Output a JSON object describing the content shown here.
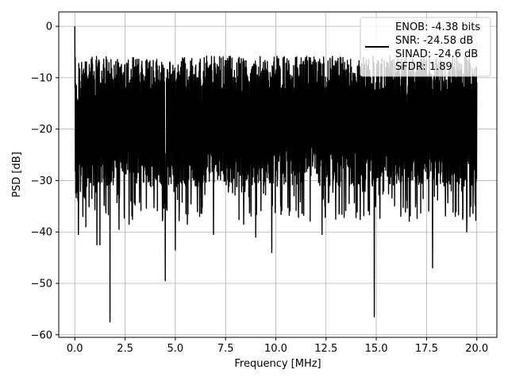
{
  "chart_data": {
    "type": "line",
    "xlabel": "Frequency [MHz]",
    "ylabel": "PSD [dB]",
    "xlim": [
      -0.8,
      21.0
    ],
    "ylim": [
      -60.5,
      2.8
    ],
    "xticks": [
      0.0,
      2.5,
      5.0,
      7.5,
      10.0,
      12.5,
      15.0,
      17.5,
      20.0
    ],
    "xtick_labels": [
      "0.0",
      "2.5",
      "5.0",
      "7.5",
      "10.0",
      "12.5",
      "15.0",
      "17.5",
      "20.0"
    ],
    "yticks": [
      0,
      -10,
      -20,
      -30,
      -40,
      -50,
      -60
    ],
    "ytick_labels": [
      "0",
      "−10",
      "−20",
      "−30",
      "−40",
      "−50",
      "−60"
    ],
    "grid": true,
    "legend_position": "top-right",
    "series": [
      {
        "color": "#000000",
        "legend_lines": [
          "ENOB: -4.38 bits",
          "SNR: -24.58 dB",
          "SINAD: -24.6 dB",
          "SFDR: 1.89"
        ],
        "x_range": [
          0.0,
          20.0
        ],
        "peak": {
          "x": 0.0,
          "y": 0.0
        },
        "noise_floor": {
          "upper_envelope": -9,
          "mean": -17,
          "lower_envelope": -28
        },
        "notable_dips": [
          {
            "x": 0.4,
            "y": -37
          },
          {
            "x": 0.55,
            "y": -39
          },
          {
            "x": 1.1,
            "y": -42.5
          },
          {
            "x": 1.25,
            "y": -42.5
          },
          {
            "x": 1.75,
            "y": -57.5
          },
          {
            "x": 2.2,
            "y": -39.5
          },
          {
            "x": 2.7,
            "y": -38.5
          },
          {
            "x": 4.5,
            "y": -49.5
          },
          {
            "x": 5.0,
            "y": -43.5
          },
          {
            "x": 5.6,
            "y": -38.5
          },
          {
            "x": 6.9,
            "y": -40.5
          },
          {
            "x": 8.4,
            "y": -38.5
          },
          {
            "x": 9.0,
            "y": -41
          },
          {
            "x": 9.8,
            "y": -44
          },
          {
            "x": 12.3,
            "y": -40.5
          },
          {
            "x": 14.9,
            "y": -56.5
          },
          {
            "x": 17.8,
            "y": -47
          },
          {
            "x": 19.5,
            "y": -40
          }
        ]
      }
    ]
  }
}
